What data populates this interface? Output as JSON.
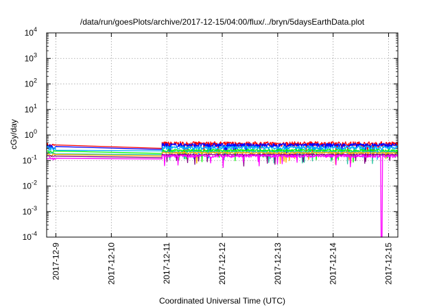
{
  "chart_data": {
    "type": "line",
    "title": "/data/run/goesPlots/archive/2017-12-15/04:00/flux/../bryn/5daysEarthData.plot",
    "xlabel": "Coordinated Universal Time (UTC)",
    "ylabel": "cGy/day",
    "yscale": "log",
    "ylim": [
      0.0001,
      10000
    ],
    "xlim": [
      "2017-12-08T20:00",
      "2017-12-15T04:00"
    ],
    "grid": true,
    "legend": "none",
    "yticks": [
      {
        "base": "10",
        "exp": "-4"
      },
      {
        "base": "10",
        "exp": "-3"
      },
      {
        "base": "10",
        "exp": "-2"
      },
      {
        "base": "10",
        "exp": "-1"
      },
      {
        "base": "10",
        "exp": "0"
      },
      {
        "base": "10",
        "exp": "1"
      },
      {
        "base": "10",
        "exp": "2"
      },
      {
        "base": "10",
        "exp": "3"
      },
      {
        "base": "10",
        "exp": "4"
      }
    ],
    "xticks": [
      "2017-12-9",
      "2017-12-10",
      "2017-12-11",
      "2017-12-12",
      "2017-12-13",
      "2017-12-14",
      "2017-12-15"
    ],
    "data_gap": [
      "2017-12-09T00:00",
      "2017-12-10T22:00"
    ],
    "series": [
      {
        "color": "#ff0000",
        "level": 0.45,
        "gap_start": 0.38,
        "gap_end": 0.3,
        "noise": 0.22
      },
      {
        "color": "#0000ff",
        "level": 0.4,
        "gap_start": 0.36,
        "gap_end": 0.27,
        "noise": 0.18
      },
      {
        "color": "#00aaff",
        "level": 0.32,
        "gap_start": 0.3,
        "gap_end": 0.24,
        "noise": 0.16
      },
      {
        "color": "#00ff00",
        "level": 0.25,
        "gap_start": 0.22,
        "gap_end": 0.19,
        "noise": 0.1
      },
      {
        "color": "#22c4a0",
        "level": 0.22,
        "gap_start": 0.2,
        "gap_end": 0.17,
        "noise": 0.08
      },
      {
        "color": "#ffb000",
        "level": 0.2,
        "gap_start": 0.17,
        "gap_end": 0.15,
        "noise": 0.07
      },
      {
        "color": "#800080",
        "level": 0.17,
        "gap_start": 0.15,
        "gap_end": 0.13,
        "noise": 0.06
      },
      {
        "color": "#ff00ff",
        "level": 0.15,
        "gap_start": 0.12,
        "gap_end": 0.115,
        "noise": 0.12,
        "dip_at": "2017-12-14T21:00",
        "dip_to": 0.0001
      }
    ]
  }
}
